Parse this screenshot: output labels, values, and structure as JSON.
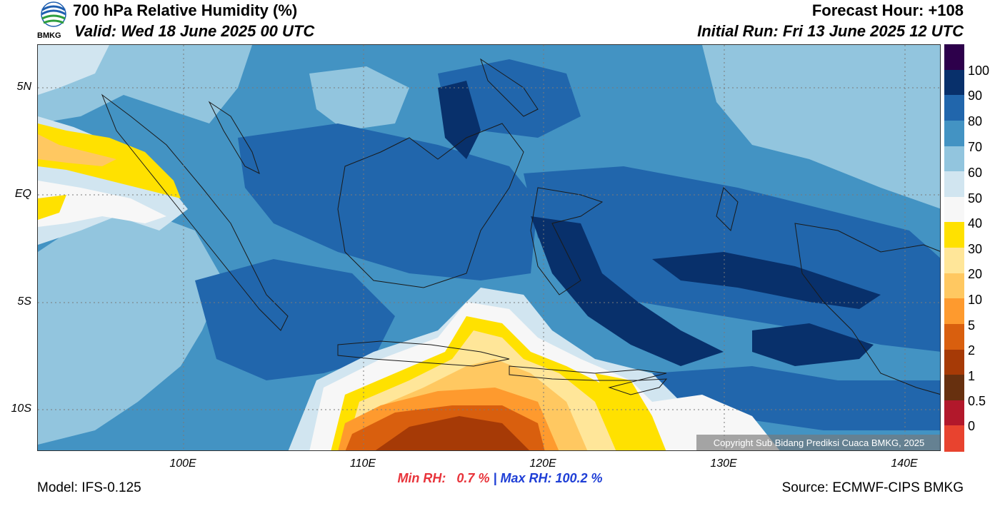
{
  "header": {
    "title": "700 hPa Relative Humidity (%)",
    "valid": "Valid: Wed 18 June 2025 00 UTC",
    "forecast_hour": "Forecast Hour: +108",
    "initial_run": "Initial Run: Fri 13 June 2025 12 UTC",
    "logo_text": "BMKG"
  },
  "map": {
    "lat_labels": [
      "5N",
      "EQ",
      "5S",
      "10S"
    ],
    "lon_labels": [
      "100E",
      "110E",
      "120E",
      "130E",
      "140E"
    ],
    "colors": {
      "dark_blue": "#08306b",
      "blue": "#2166ac",
      "mid_blue": "#4393c3",
      "light_blue": "#92c5de",
      "pale_blue": "#d1e5f0",
      "white": "#f7f7f7",
      "yellow": "#ffe100",
      "pale_orange": "#ffe699",
      "light_orange": "#ffc861",
      "orange": "#fe9a2e",
      "dark_orange": "#d95f0e",
      "brown": "#a63a06"
    },
    "copyright": "Copyright Sub Bidang Prediksi Cuaca BMKG, 2025"
  },
  "colorbar": {
    "labels": [
      "100",
      "90",
      "80",
      "70",
      "60",
      "50",
      "40",
      "30",
      "20",
      "10",
      "5",
      "2",
      "1",
      "0.5",
      "0"
    ],
    "colors": [
      "#2d004b",
      "#08306b",
      "#2166ac",
      "#4393c3",
      "#92c5de",
      "#d1e5f0",
      "#f7f7f7",
      "#ffe100",
      "#ffe699",
      "#ffc861",
      "#fe9a2e",
      "#d95f0e",
      "#a63a06",
      "#67300f",
      "#b2182b",
      "#e8432f"
    ]
  },
  "stats": {
    "min_rh": "Min RH:   0.7 %",
    "separator": " | ",
    "max_rh": "Max RH: 100.2 %"
  },
  "footer": {
    "model": "Model: IFS-0.125",
    "source": "Source: ECMWF-CIPS BMKG"
  }
}
